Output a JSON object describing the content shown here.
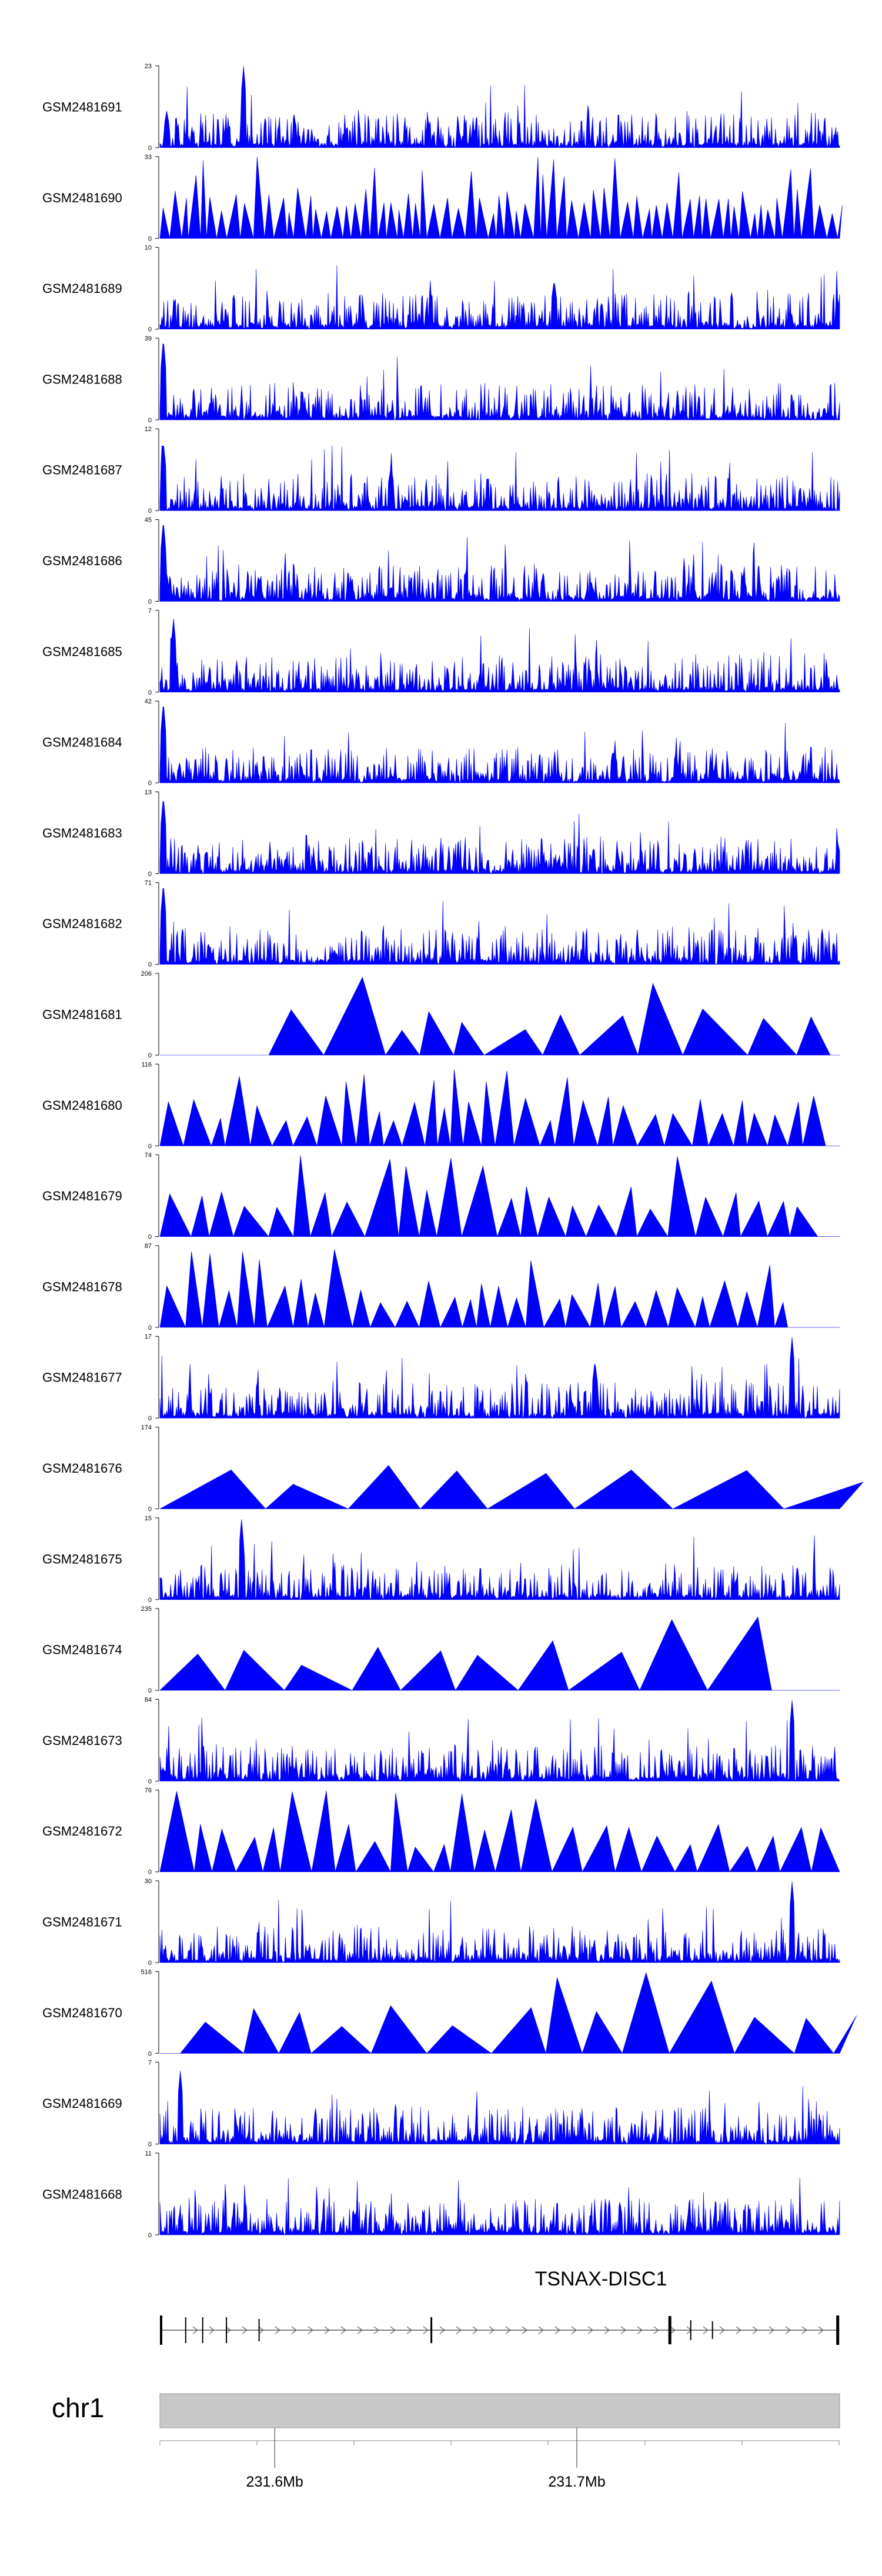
{
  "chart_data": {
    "type": "area",
    "title": "",
    "xlabel": "",
    "ylabel": "",
    "series_color": "#0000ff",
    "region_mb": [
      231.562,
      231.787
    ],
    "tracks": [
      {
        "name": "GSM2481691",
        "ymax": 23,
        "style": "dense",
        "seed": 11,
        "peaks": [
          [
            0.01,
            0.45
          ],
          [
            0.123,
            1.0
          ]
        ]
      },
      {
        "name": "GSM2481690",
        "ymax": 33,
        "style": "tri",
        "n": 70,
        "seed": 12
      },
      {
        "name": "GSM2481689",
        "ymax": 10,
        "style": "dense",
        "seed": 13,
        "peaks": [
          [
            0.58,
            0.6
          ]
        ]
      },
      {
        "name": "GSM2481688",
        "ymax": 39,
        "style": "dense",
        "seed": 14,
        "peaks": [
          [
            0.005,
            1.0
          ],
          [
            0.34,
            0.12
          ]
        ]
      },
      {
        "name": "GSM2481687",
        "ymax": 12,
        "style": "dense",
        "seed": 15,
        "peaks": [
          [
            0.005,
            0.85
          ],
          [
            0.34,
            0.55
          ]
        ]
      },
      {
        "name": "GSM2481686",
        "ymax": 45,
        "style": "dense",
        "seed": 16,
        "peaks": [
          [
            0.005,
            1.0
          ],
          [
            0.34,
            0.18
          ]
        ]
      },
      {
        "name": "GSM2481685",
        "ymax": 7,
        "style": "dense",
        "seed": 17,
        "peaks": [
          [
            0.02,
            0.9
          ]
        ]
      },
      {
        "name": "GSM2481684",
        "ymax": 42,
        "style": "dense",
        "seed": 18,
        "peaks": [
          [
            0.005,
            1.0
          ],
          [
            0.34,
            0.1
          ]
        ]
      },
      {
        "name": "GSM2481683",
        "ymax": 13,
        "style": "dense",
        "seed": 19,
        "peaks": [
          [
            0.005,
            0.95
          ]
        ]
      },
      {
        "name": "GSM2481682",
        "ymax": 71,
        "style": "dense",
        "seed": 20,
        "peaks": [
          [
            0.005,
            1.0
          ],
          [
            0.38,
            0.08
          ]
        ]
      },
      {
        "name": "GSM2481681",
        "ymax": 206,
        "style": "tri",
        "n": 12,
        "seed": 21,
        "start": 0.16
      },
      {
        "name": "GSM2481680",
        "ymax": 116,
        "style": "tri",
        "n": 34,
        "seed": 22
      },
      {
        "name": "GSM2481679",
        "ymax": 74,
        "style": "tri",
        "n": 26,
        "seed": 23
      },
      {
        "name": "GSM2481678",
        "ymax": 87,
        "style": "tri",
        "n": 32,
        "seed": 24
      },
      {
        "name": "GSM2481677",
        "ymax": 17,
        "style": "dense",
        "seed": 25,
        "peaks": [
          [
            0.64,
            0.7
          ],
          [
            0.93,
            1.0
          ]
        ]
      },
      {
        "name": "GSM2481676",
        "ymax": 174,
        "style": "tri",
        "n": 8,
        "seed": 26
      },
      {
        "name": "GSM2481675",
        "ymax": 15,
        "style": "dense",
        "seed": 27,
        "peaks": [
          [
            0.12,
            1.0
          ]
        ]
      },
      {
        "name": "GSM2481674",
        "ymax": 235,
        "style": "tri",
        "n": 12,
        "seed": 28,
        "end": 0.9
      },
      {
        "name": "GSM2481673",
        "ymax": 84,
        "style": "dense",
        "seed": 29,
        "peaks": [
          [
            0.005,
            0.15
          ],
          [
            0.93,
            1.0
          ]
        ]
      },
      {
        "name": "GSM2481672",
        "ymax": 76,
        "style": "tri",
        "n": 26,
        "seed": 30
      },
      {
        "name": "GSM2481671",
        "ymax": 30,
        "style": "dense",
        "seed": 31,
        "peaks": [
          [
            0.93,
            1.0
          ]
        ]
      },
      {
        "name": "GSM2481670",
        "ymax": 516,
        "style": "tri",
        "n": 14,
        "seed": 32,
        "start": 0.03
      },
      {
        "name": "GSM2481669",
        "ymax": 7,
        "style": "dense",
        "seed": 33,
        "peaks": [
          [
            0.03,
            0.9
          ]
        ]
      },
      {
        "name": "GSM2481668",
        "ymax": 11,
        "style": "dense",
        "seed": 34,
        "peaks": []
      }
    ],
    "gene": {
      "name": "TSNAX-DISC1"
    },
    "ideogram": {
      "chromosome": "chr1",
      "ticks": [
        {
          "mb": 231.6,
          "label": "231.6Mb"
        },
        {
          "mb": 231.7,
          "label": "231.7Mb"
        }
      ]
    }
  }
}
